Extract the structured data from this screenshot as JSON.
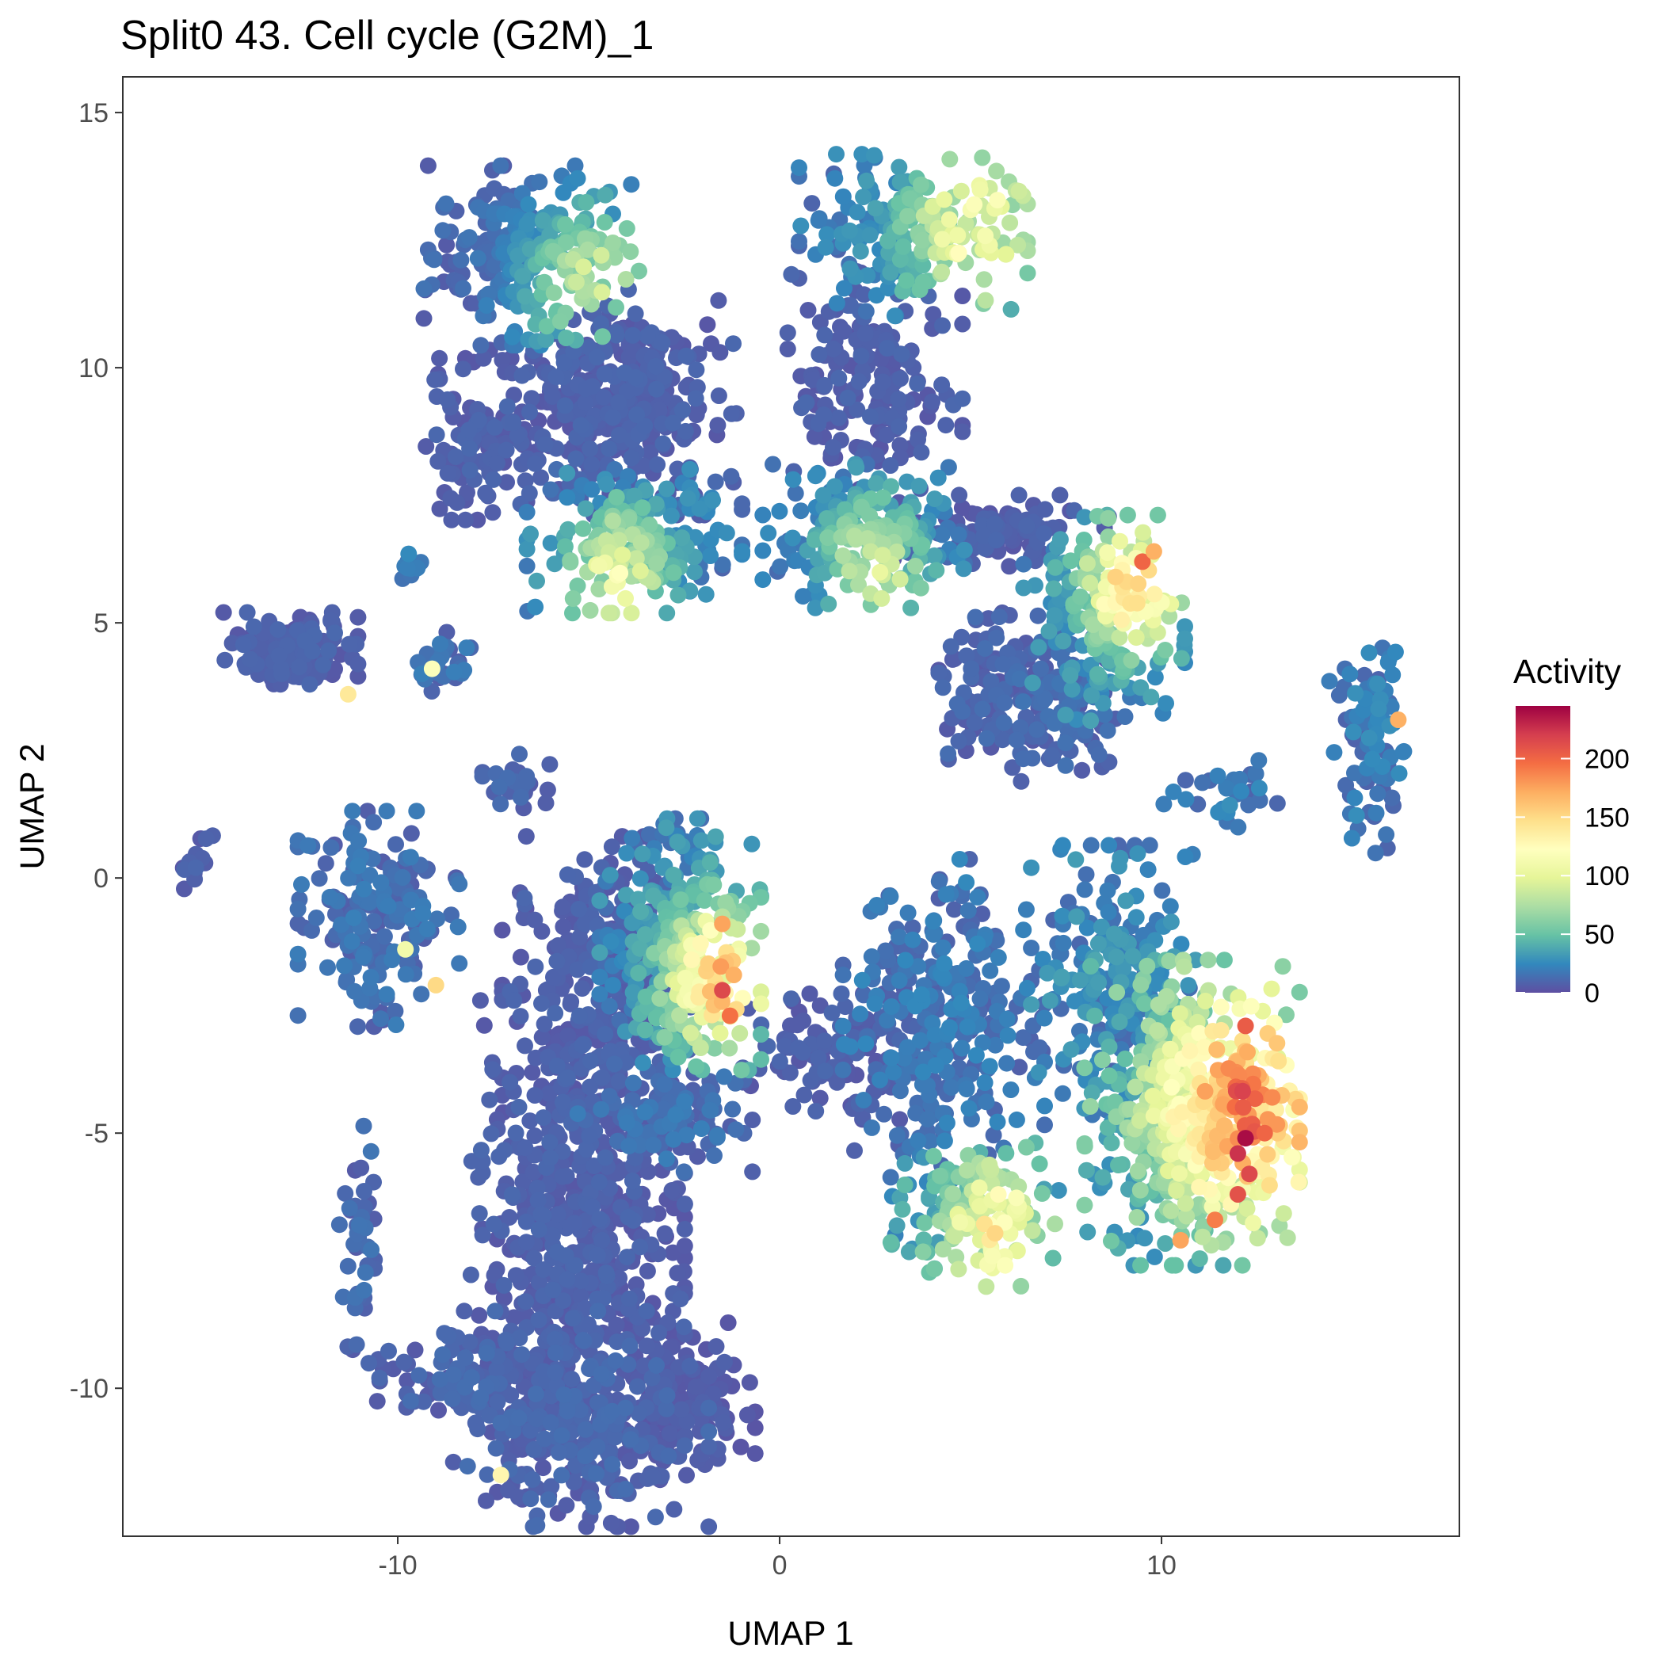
{
  "chart_data": {
    "type": "scatter",
    "title": "Split0 43. Cell cycle (G2M)_1",
    "xlabel": "UMAP 1",
    "ylabel": "UMAP 2",
    "xlim": [
      -17.2,
      17.8
    ],
    "ylim": [
      -12.9,
      15.7
    ],
    "xticks": [
      -10,
      0,
      10
    ],
    "yticks": [
      -10,
      -5,
      0,
      5,
      10,
      15
    ],
    "grid": false,
    "color_scale": {
      "name": "Activity",
      "min": 0,
      "max": 245,
      "ticks": [
        0,
        50,
        100,
        150,
        200
      ],
      "palette": [
        "#5e4fa2",
        "#3288bd",
        "#66c2a5",
        "#abdda4",
        "#e6f598",
        "#ffffbf",
        "#fee08b",
        "#fdae61",
        "#f46d43",
        "#d53e4f",
        "#9e0142"
      ]
    },
    "legend_position": "right",
    "clusters": [
      {
        "x": -6.5,
        "y": 12.2,
        "sx": 1.6,
        "sy": 1.0,
        "n": 260,
        "base": 12,
        "hot": [
          -4.8,
          11.6
        ],
        "hotv": 75,
        "hotr": 1.2
      },
      {
        "x": -5.2,
        "y": 9.3,
        "sx": 1.6,
        "sy": 1.0,
        "n": 200,
        "base": 8
      },
      {
        "x": -3.6,
        "y": 9.4,
        "sx": 1.4,
        "sy": 1.3,
        "n": 180,
        "base": 8
      },
      {
        "x": -7.8,
        "y": 8.6,
        "sx": 0.9,
        "sy": 0.9,
        "n": 110,
        "base": 8
      },
      {
        "x": -3.8,
        "y": 6.6,
        "sx": 1.6,
        "sy": 0.8,
        "n": 220,
        "base": 20,
        "hot": [
          -4.3,
          5.8
        ],
        "hotv": 85,
        "hotr": 1.0
      },
      {
        "x": 3.5,
        "y": 12.6,
        "sx": 1.7,
        "sy": 0.9,
        "n": 220,
        "base": 20,
        "hot": [
          5.2,
          12.7
        ],
        "hotv": 95,
        "hotr": 1.3
      },
      {
        "x": 2.5,
        "y": 9.6,
        "sx": 1.3,
        "sy": 1.3,
        "n": 180,
        "base": 8
      },
      {
        "x": 2.2,
        "y": 6.7,
        "sx": 1.5,
        "sy": 0.8,
        "n": 200,
        "base": 18,
        "hot": [
          2.5,
          6.0
        ],
        "hotv": 75,
        "hotr": 1.0
      },
      {
        "x": 5.8,
        "y": 6.8,
        "sx": 1.6,
        "sy": 0.4,
        "n": 100,
        "base": 8
      },
      {
        "x": 8.5,
        "y": 5.0,
        "sx": 1.2,
        "sy": 1.2,
        "n": 220,
        "base": 25,
        "hot": [
          9.3,
          5.8
        ],
        "hotv": 130,
        "hotr": 0.9
      },
      {
        "x": 5.4,
        "y": 3.8,
        "sx": 0.7,
        "sy": 1.0,
        "n": 90,
        "base": 10
      },
      {
        "x": 7.3,
        "y": 3.3,
        "sx": 0.9,
        "sy": 0.8,
        "n": 110,
        "base": 12
      },
      {
        "x": -12.8,
        "y": 4.5,
        "sx": 1.0,
        "sy": 0.4,
        "n": 130,
        "base": 8
      },
      {
        "x": -8.8,
        "y": 4.2,
        "sx": 0.4,
        "sy": 0.35,
        "n": 30,
        "base": 15
      },
      {
        "x": -9.6,
        "y": 6.0,
        "sx": 0.2,
        "sy": 0.2,
        "n": 10,
        "base": 20
      },
      {
        "x": -6.9,
        "y": 1.9,
        "sx": 0.5,
        "sy": 0.3,
        "n": 35,
        "base": 10
      },
      {
        "x": -10.5,
        "y": -0.8,
        "sx": 1.2,
        "sy": 1.2,
        "n": 180,
        "base": 15
      },
      {
        "x": -15.3,
        "y": 0.3,
        "sx": 0.3,
        "sy": 0.3,
        "n": 14,
        "base": 8
      },
      {
        "x": 15.4,
        "y": 2.6,
        "sx": 0.6,
        "sy": 1.2,
        "n": 90,
        "base": 20
      },
      {
        "x": 11.6,
        "y": 1.7,
        "sx": 0.9,
        "sy": 0.4,
        "n": 30,
        "base": 20
      },
      {
        "x": -2.6,
        "y": -1.3,
        "sx": 1.2,
        "sy": 1.4,
        "n": 320,
        "base": 25,
        "hot": [
          -1.5,
          -2.0
        ],
        "hotv": 130,
        "hotr": 1.0
      },
      {
        "x": -4.8,
        "y": -2.0,
        "sx": 1.4,
        "sy": 1.6,
        "n": 260,
        "base": 8
      },
      {
        "x": -5.3,
        "y": -6.8,
        "sx": 1.6,
        "sy": 2.5,
        "n": 560,
        "base": 8
      },
      {
        "x": -5.2,
        "y": -10.6,
        "sx": 1.9,
        "sy": 1.2,
        "n": 320,
        "base": 10
      },
      {
        "x": -2.4,
        "y": -10.3,
        "sx": 1.0,
        "sy": 0.9,
        "n": 140,
        "base": 6
      },
      {
        "x": -8.6,
        "y": -9.8,
        "sx": 1.1,
        "sy": 0.5,
        "n": 90,
        "base": 10
      },
      {
        "x": -11.0,
        "y": -7.5,
        "sx": 0.3,
        "sy": 1.5,
        "n": 45,
        "base": 12
      },
      {
        "x": -3.0,
        "y": -4.7,
        "sx": 1.3,
        "sy": 0.6,
        "n": 110,
        "base": 15
      },
      {
        "x": 1.5,
        "y": -3.5,
        "sx": 1.4,
        "sy": 0.7,
        "n": 120,
        "base": 8
      },
      {
        "x": 4.3,
        "y": -2.8,
        "sx": 1.5,
        "sy": 1.8,
        "n": 300,
        "base": 18
      },
      {
        "x": 5.2,
        "y": -6.6,
        "sx": 1.3,
        "sy": 0.8,
        "n": 150,
        "base": 35,
        "hot": [
          5.7,
          -7.0
        ],
        "hotv": 95,
        "hotr": 1.0
      },
      {
        "x": 8.7,
        "y": -2.0,
        "sx": 1.2,
        "sy": 1.5,
        "n": 220,
        "base": 25
      },
      {
        "x": 10.8,
        "y": -4.6,
        "sx": 1.6,
        "sy": 1.7,
        "n": 560,
        "base": 45,
        "hot": [
          12.3,
          -4.5
        ],
        "hotv": 150,
        "hotr": 1.5
      }
    ],
    "highlights": [
      {
        "x": 12.2,
        "y": -5.1,
        "v": 240
      },
      {
        "x": 12.0,
        "y": -5.4,
        "v": 225
      },
      {
        "x": 12.3,
        "y": -5.8,
        "v": 215
      },
      {
        "x": 12.0,
        "y": -6.2,
        "v": 210
      },
      {
        "x": 12.7,
        "y": -5.0,
        "v": 200
      },
      {
        "x": 12.2,
        "y": -2.9,
        "v": 205
      },
      {
        "x": 11.4,
        "y": -6.7,
        "v": 190
      },
      {
        "x": 12.9,
        "y": -4.3,
        "v": 185
      },
      {
        "x": 10.5,
        "y": -7.1,
        "v": 175
      },
      {
        "x": -1.5,
        "y": -2.2,
        "v": 215
      },
      {
        "x": -1.3,
        "y": -2.7,
        "v": 195
      },
      {
        "x": -1.5,
        "y": -0.9,
        "v": 175
      },
      {
        "x": -1.2,
        "y": -1.9,
        "v": 170
      },
      {
        "x": 9.5,
        "y": 6.2,
        "v": 200
      },
      {
        "x": 9.8,
        "y": 6.4,
        "v": 170
      },
      {
        "x": 16.2,
        "y": 3.1,
        "v": 170
      },
      {
        "x": -9.0,
        "y": -2.1,
        "v": 150
      },
      {
        "x": -11.3,
        "y": 3.6,
        "v": 140
      },
      {
        "x": -7.3,
        "y": -11.7,
        "v": 130
      },
      {
        "x": -9.1,
        "y": 4.1,
        "v": 120
      },
      {
        "x": -9.8,
        "y": -1.4,
        "v": 110
      }
    ]
  }
}
